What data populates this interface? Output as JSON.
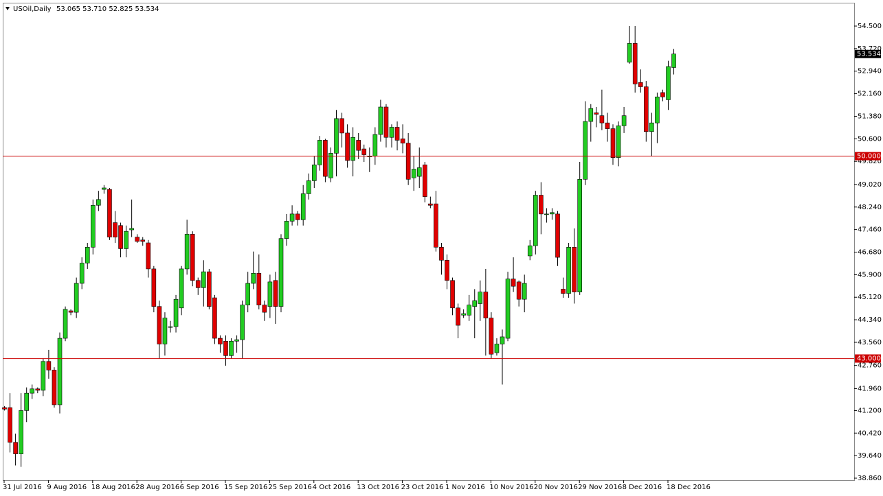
{
  "chart_data": {
    "type": "candlestick",
    "title": "USOil,Daily",
    "info": "53.065 53.710 52.825 53.534",
    "categories": [
      "31 Jul 2016",
      null,
      null,
      null,
      null,
      null,
      null,
      null,
      "9 Aug 2016",
      null,
      null,
      null,
      null,
      null,
      null,
      null,
      "18 Aug 2016",
      null,
      null,
      null,
      null,
      null,
      null,
      null,
      "28 Aug 2016",
      null,
      null,
      null,
      null,
      null,
      null,
      null,
      "6 Sep 2016",
      null,
      null,
      null,
      null,
      null,
      null,
      null,
      "15 Sep 2016",
      null,
      null,
      null,
      null,
      null,
      null,
      null,
      "25 Sep 2016",
      null,
      null,
      null,
      null,
      null,
      null,
      null,
      "4 Oct 2016",
      null,
      null,
      null,
      null,
      null,
      null,
      null,
      "13 Oct 2016",
      null,
      null,
      null,
      null,
      null,
      null,
      null,
      "23 Oct 2016",
      null,
      null,
      null,
      null,
      null,
      null,
      null,
      "1 Nov 2016",
      null,
      null,
      null,
      null,
      null,
      null,
      null,
      "10 Nov 2016",
      null,
      null,
      null,
      null,
      null,
      null,
      null,
      "20 Nov 2016",
      null,
      null,
      null,
      null,
      null,
      null,
      null,
      "29 Nov 2016",
      null,
      null,
      null,
      null,
      null,
      null,
      null,
      "8 Dec 2016",
      null,
      null,
      null,
      null,
      null,
      null,
      null,
      "18 Dec 2016",
      null
    ],
    "open": [
      41.3,
      41.3,
      40.1,
      39.7,
      41.2,
      41.8,
      41.95,
      41.9,
      42.9,
      42.6,
      41.4,
      43.7,
      44.65,
      44.6,
      45.6,
      46.3,
      46.85,
      48.3,
      48.85,
      48.85,
      47.7,
      47.6,
      46.8,
      47.45,
      47.2,
      47.1,
      47.0,
      46.1,
      44.8,
      43.5,
      44.1,
      44.1,
      44.75,
      46.1,
      47.3,
      45.7,
      45.45,
      46.0,
      45.1,
      43.7,
      43.6,
      43.1,
      43.6,
      43.65,
      44.85,
      45.6,
      45.95,
      44.85,
      44.8,
      45.7,
      44.8,
      47.15,
      47.75,
      48.0,
      47.8,
      48.7,
      49.15,
      49.7,
      50.55,
      49.25,
      50.1,
      51.3,
      50.8,
      49.85,
      50.55,
      50.25,
      50.0,
      50.0,
      50.75,
      51.7,
      50.65,
      51.0,
      50.6,
      50.45,
      49.25,
      49.3,
      49.7,
      48.35,
      48.35,
      46.85,
      46.4,
      45.7,
      44.75,
      44.5,
      44.5,
      44.8,
      44.9,
      45.3,
      44.4,
      43.2,
      43.5,
      43.7,
      45.75,
      45.65,
      45.05,
      46.55,
      46.9,
      48.65,
      48.0,
      48.0,
      48.0,
      45.4,
      45.25,
      46.85,
      45.3,
      49.2,
      51.2,
      51.5,
      51.4,
      51.15,
      50.95,
      49.95,
      51.05,
      53.25,
      53.9,
      52.55,
      52.4,
      50.85,
      51.15,
      52.2,
      51.95,
      53.065
    ],
    "high": [
      41.35,
      41.8,
      40.4,
      41.8,
      42.0,
      42.1,
      42.0,
      43.0,
      43.3,
      42.7,
      43.9,
      44.8,
      44.7,
      45.8,
      46.5,
      47.0,
      48.5,
      48.8,
      49.0,
      48.9,
      48.1,
      47.7,
      47.6,
      48.5,
      47.3,
      47.2,
      47.1,
      46.2,
      45.0,
      44.6,
      44.3,
      45.2,
      46.2,
      47.8,
      47.4,
      45.8,
      46.4,
      46.1,
      45.2,
      43.8,
      43.8,
      43.7,
      43.8,
      45.0,
      46.0,
      46.7,
      46.6,
      45.0,
      45.9,
      46.0,
      47.3,
      48.0,
      48.3,
      48.1,
      49.0,
      49.4,
      50.0,
      50.7,
      50.6,
      50.3,
      51.6,
      51.5,
      51.1,
      51.0,
      50.8,
      50.4,
      50.3,
      51.0,
      51.95,
      51.8,
      51.1,
      51.2,
      51.1,
      50.8,
      50.0,
      50.3,
      49.8,
      48.6,
      48.8,
      47.0,
      46.6,
      45.8,
      44.9,
      44.7,
      45.2,
      45.4,
      45.7,
      46.1,
      44.6,
      43.7,
      44.0,
      46.0,
      46.5,
      45.7,
      45.9,
      47.1,
      48.8,
      49.1,
      48.2,
      48.2,
      48.1,
      45.8,
      47.0,
      47.5,
      49.8,
      51.9,
      51.8,
      51.7,
      52.3,
      51.5,
      51.1,
      51.2,
      51.7,
      54.5,
      54.5,
      53.0,
      52.6,
      51.5,
      52.2,
      52.3,
      53.3,
      53.71
    ],
    "low": [
      41.2,
      39.75,
      39.3,
      39.25,
      40.8,
      41.6,
      41.8,
      41.7,
      42.3,
      41.3,
      41.1,
      43.6,
      44.5,
      44.4,
      45.4,
      46.1,
      46.6,
      48.1,
      48.7,
      47.1,
      47.0,
      46.5,
      46.5,
      47.2,
      47.0,
      46.9,
      45.8,
      44.6,
      43.0,
      43.1,
      43.9,
      43.9,
      44.5,
      45.9,
      45.5,
      45.2,
      44.8,
      44.7,
      43.5,
      43.2,
      42.75,
      43.0,
      43.2,
      43.0,
      44.6,
      45.4,
      44.7,
      44.3,
      44.4,
      44.2,
      44.6,
      46.9,
      47.6,
      47.6,
      47.6,
      48.5,
      48.9,
      49.5,
      49.1,
      49.1,
      49.3,
      50.3,
      49.6,
      49.3,
      49.9,
      49.8,
      49.45,
      49.7,
      50.5,
      50.3,
      50.3,
      50.2,
      50.1,
      49.0,
      48.8,
      48.9,
      48.4,
      48.2,
      46.7,
      45.9,
      45.4,
      44.5,
      43.7,
      44.4,
      44.3,
      43.7,
      44.3,
      43.1,
      43.0,
      43.1,
      42.1,
      43.6,
      45.3,
      44.8,
      44.6,
      46.4,
      46.6,
      47.3,
      47.7,
      47.8,
      46.2,
      45.1,
      45.1,
      44.9,
      45.2,
      49.0,
      50.5,
      51.0,
      50.9,
      50.5,
      49.7,
      49.65,
      50.8,
      53.2,
      52.2,
      52.2,
      50.5,
      50.0,
      50.45,
      51.9,
      51.6,
      52.825
    ],
    "close": [
      41.25,
      40.1,
      39.7,
      41.2,
      41.8,
      41.95,
      41.9,
      42.9,
      42.6,
      41.4,
      43.7,
      44.7,
      44.6,
      45.6,
      46.3,
      46.85,
      48.3,
      48.5,
      48.9,
      47.2,
      47.2,
      46.8,
      47.4,
      47.5,
      47.05,
      47.05,
      46.1,
      44.8,
      43.5,
      44.4,
      44.1,
      45.05,
      46.1,
      47.3,
      45.7,
      45.45,
      46.0,
      44.8,
      43.7,
      43.5,
      43.1,
      43.6,
      43.65,
      44.85,
      45.6,
      45.95,
      44.85,
      44.6,
      45.65,
      44.8,
      47.15,
      47.75,
      48.0,
      47.8,
      48.7,
      49.15,
      49.7,
      50.55,
      49.3,
      50.1,
      51.3,
      50.8,
      49.85,
      50.65,
      50.2,
      50.05,
      50.0,
      50.75,
      51.7,
      50.65,
      51.0,
      50.55,
      50.45,
      49.2,
      49.55,
      49.6,
      48.6,
      48.3,
      46.85,
      46.4,
      45.7,
      44.75,
      44.15,
      44.55,
      44.85,
      45.0,
      45.3,
      44.4,
      43.15,
      43.5,
      43.75,
      45.75,
      45.5,
      45.05,
      45.6,
      46.9,
      48.65,
      48.0,
      48.0,
      48.05,
      46.5,
      45.25,
      46.85,
      45.3,
      49.2,
      51.2,
      51.65,
      51.45,
      51.15,
      50.95,
      49.95,
      51.05,
      51.4,
      53.9,
      52.5,
      52.4,
      50.85,
      51.15,
      52.05,
      52.05,
      53.1,
      53.534
    ],
    "up_color": "#22cc22",
    "down_color": "#e00000",
    "ylim": [
      38.789,
      55.307
    ],
    "yticks": [
      {
        "value": 54.5,
        "label": "54.500"
      },
      {
        "value": 53.72,
        "label": "53.720"
      },
      {
        "value": 52.94,
        "label": "52.940"
      },
      {
        "value": 52.16,
        "label": "52.160"
      },
      {
        "value": 51.38,
        "label": "51.380"
      },
      {
        "value": 50.6,
        "label": "50.600"
      },
      {
        "value": 49.82,
        "label": "49.820"
      },
      {
        "value": 49.02,
        "label": "49.020"
      },
      {
        "value": 48.24,
        "label": "48.240"
      },
      {
        "value": 47.46,
        "label": "47.460"
      },
      {
        "value": 46.68,
        "label": "46.680"
      },
      {
        "value": 45.9,
        "label": "45.900"
      },
      {
        "value": 45.12,
        "label": "45.120"
      },
      {
        "value": 44.34,
        "label": "44.340"
      },
      {
        "value": 43.56,
        "label": "43.560"
      },
      {
        "value": 42.76,
        "label": "42.760"
      },
      {
        "value": 41.96,
        "label": "41.960"
      },
      {
        "value": 41.2,
        "label": "41.200"
      },
      {
        "value": 40.42,
        "label": "40.420"
      },
      {
        "value": 39.64,
        "label": "39.640"
      },
      {
        "value": 38.86,
        "label": "38.860"
      }
    ],
    "hlines": [
      {
        "value": 50,
        "label": "50.000",
        "color": "#cc0000"
      },
      {
        "value": 43,
        "label": "43.000",
        "color": "#cc0000"
      }
    ],
    "last_price": {
      "value": 53.534,
      "label": "53.534"
    }
  }
}
